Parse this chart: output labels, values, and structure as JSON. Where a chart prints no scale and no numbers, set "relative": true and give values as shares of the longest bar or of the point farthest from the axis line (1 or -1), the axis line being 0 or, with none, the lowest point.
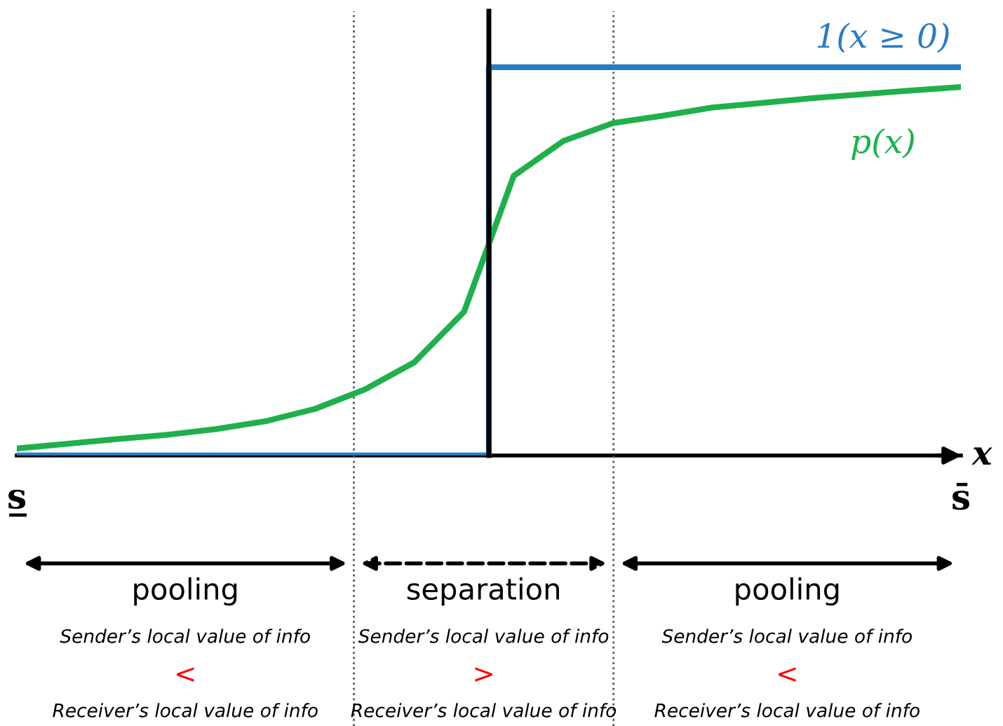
{
  "chart_data": {
    "type": "line",
    "relative": true,
    "xlabel": "x",
    "categories": [
      "s̲",
      null,
      null,
      null,
      null,
      null,
      null,
      null,
      null,
      null,
      null,
      null,
      null,
      null,
      null,
      null,
      null,
      null,
      null,
      "s̄"
    ],
    "series": [
      {
        "name": "1(x ≥ 0)",
        "type": "step",
        "color": "#2b7bc0",
        "values": [
          0,
          0,
          0,
          0,
          0,
          0,
          0,
          0,
          0,
          0,
          1,
          1,
          1,
          1,
          1,
          1,
          1,
          1,
          1,
          1
        ]
      },
      {
        "name": "p(x)",
        "color": "#1fb04c",
        "values": [
          0.018,
          0.03,
          0.042,
          0.053,
          0.068,
          0.088,
          0.12,
          0.17,
          0.24,
          0.37,
          0.72,
          0.81,
          0.856,
          0.875,
          0.896,
          0.908,
          0.92,
          0.93,
          0.94,
          0.949
        ]
      }
    ],
    "annotations": [
      "pooling",
      "separation",
      "pooling",
      "Sender’s local value of info",
      "Sender’s local value of info",
      "Sender’s local value of info",
      "<",
      ">",
      "<",
      "Receiver’s local value of info",
      "Receiver’s local value of info",
      "Receiver’s local value of info"
    ],
    "legend": false,
    "grid": false,
    "marker": "none",
    "line_style": "solid"
  }
}
